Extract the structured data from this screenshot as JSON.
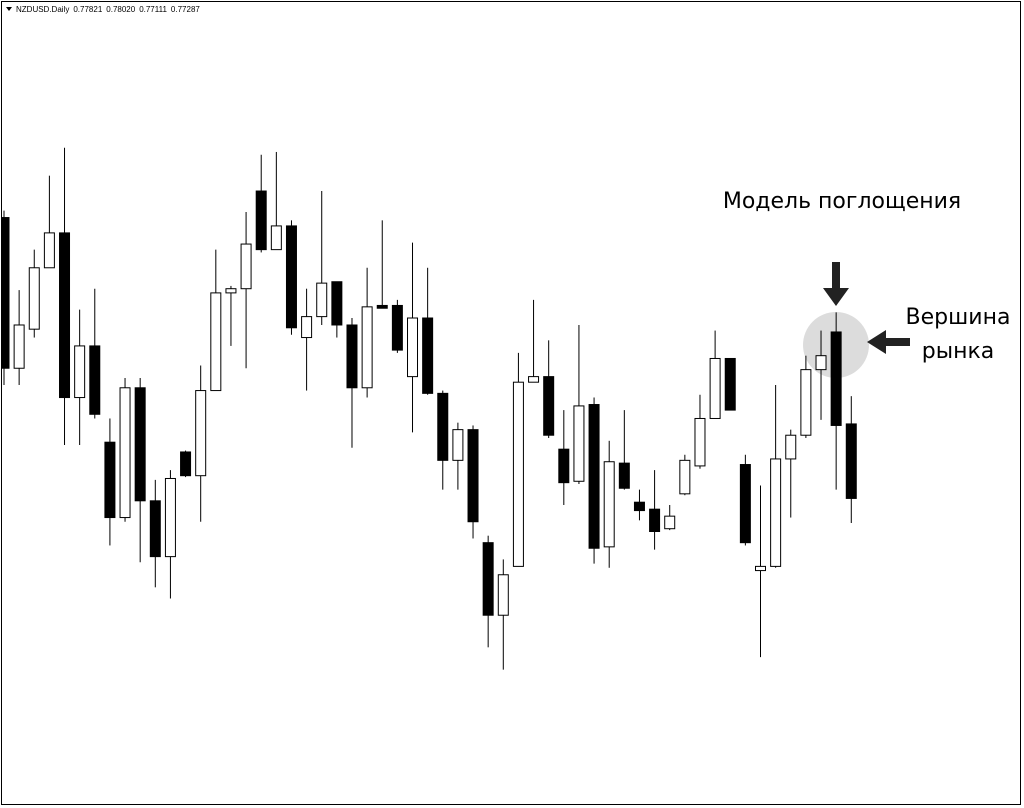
{
  "chart_data": {
    "type": "candlestick",
    "header": {
      "symbol": "NZDUSD.Daily",
      "quote": [
        {
          "value": 0.77821,
          "label": "0.77821"
        },
        {
          "value": 0.7802,
          "label": "0.78020"
        },
        {
          "value": 0.77111,
          "label": "0.77111"
        },
        {
          "value": 0.77287,
          "label": "0.77287"
        }
      ]
    },
    "annotations": {
      "pattern": "Модель поглощения",
      "top": [
        "Вершина",
        "рынка"
      ]
    },
    "up_color": "#ffffff",
    "down_color": "#000000",
    "ylim": [
      0.7509,
      0.8073
    ],
    "open": [
      0.793,
      0.7822,
      0.785,
      0.7894,
      0.7919,
      0.7801,
      0.7838,
      0.7769,
      0.7715,
      0.7808,
      0.7727,
      0.7687,
      0.7762,
      0.7745,
      0.7806,
      0.7876,
      0.7879,
      0.7949,
      0.7907,
      0.7924,
      0.7844,
      0.7859,
      0.7884,
      0.7853,
      0.7808,
      0.7867,
      0.7867,
      0.7816,
      0.7858,
      0.7804,
      0.7756,
      0.7778,
      0.7697,
      0.7645,
      0.768,
      0.7812,
      0.7816,
      0.7764,
      0.7741,
      0.7796,
      0.7694,
      0.7754,
      0.7726,
      0.7721,
      0.7707,
      0.7732,
      0.7752,
      0.7786,
      0.7829,
      0.7753,
      0.7677,
      0.768,
      0.7757,
      0.7774,
      0.7821,
      0.7848,
      0.77821
    ],
    "high": [
      0.7935,
      0.7878,
      0.7907,
      0.796,
      0.798,
      0.7864,
      0.7879,
      0.7786,
      0.7815,
      0.7815,
      0.7742,
      0.7749,
      0.7763,
      0.7824,
      0.7907,
      0.7881,
      0.7934,
      0.7975,
      0.7977,
      0.7928,
      0.7879,
      0.7949,
      0.7884,
      0.7858,
      0.7894,
      0.7928,
      0.7871,
      0.7912,
      0.7894,
      0.7806,
      0.7783,
      0.7781,
      0.7702,
      0.7685,
      0.7833,
      0.7871,
      0.7842,
      0.7792,
      0.7853,
      0.7801,
      0.777,
      0.7792,
      0.7735,
      0.7749,
      0.7724,
      0.776,
      0.7803,
      0.7849,
      0.7829,
      0.776,
      0.7738,
      0.781,
      0.7778,
      0.7831,
      0.7849,
      0.7862,
      0.7802
    ],
    "low": [
      0.781,
      0.781,
      0.7844,
      0.7894,
      0.7767,
      0.7767,
      0.7786,
      0.7695,
      0.7712,
      0.7683,
      0.7665,
      0.7657,
      0.7744,
      0.7712,
      0.7806,
      0.7838,
      0.7822,
      0.7905,
      0.7907,
      0.7846,
      0.7806,
      0.7853,
      0.7844,
      0.7765,
      0.7801,
      0.7865,
      0.7833,
      0.7776,
      0.7803,
      0.7735,
      0.7735,
      0.77,
      0.7622,
      0.7606,
      0.768,
      0.7812,
      0.7772,
      0.7724,
      0.7739,
      0.7682,
      0.7679,
      0.7735,
      0.7713,
      0.7692,
      0.7706,
      0.7731,
      0.775,
      0.7786,
      0.7792,
      0.7695,
      0.7615,
      0.7679,
      0.7715,
      0.7772,
      0.7785,
      0.7735,
      0.77111
    ],
    "close": [
      0.7822,
      0.7853,
      0.7894,
      0.7919,
      0.7801,
      0.7838,
      0.7789,
      0.7715,
      0.7808,
      0.7727,
      0.7687,
      0.7743,
      0.7745,
      0.7806,
      0.7876,
      0.7879,
      0.7911,
      0.7907,
      0.7924,
      0.7851,
      0.7859,
      0.7883,
      0.7853,
      0.7808,
      0.7866,
      0.7865,
      0.7835,
      0.7858,
      0.7804,
      0.7756,
      0.7778,
      0.7712,
      0.7645,
      0.7674,
      0.7812,
      0.7816,
      0.7774,
      0.774,
      0.7795,
      0.7693,
      0.7755,
      0.7736,
      0.772,
      0.7705,
      0.7716,
      0.7756,
      0.7786,
      0.7829,
      0.7792,
      0.7697,
      0.768,
      0.7757,
      0.7774,
      0.7821,
      0.7831,
      0.7781,
      0.77287
    ]
  }
}
